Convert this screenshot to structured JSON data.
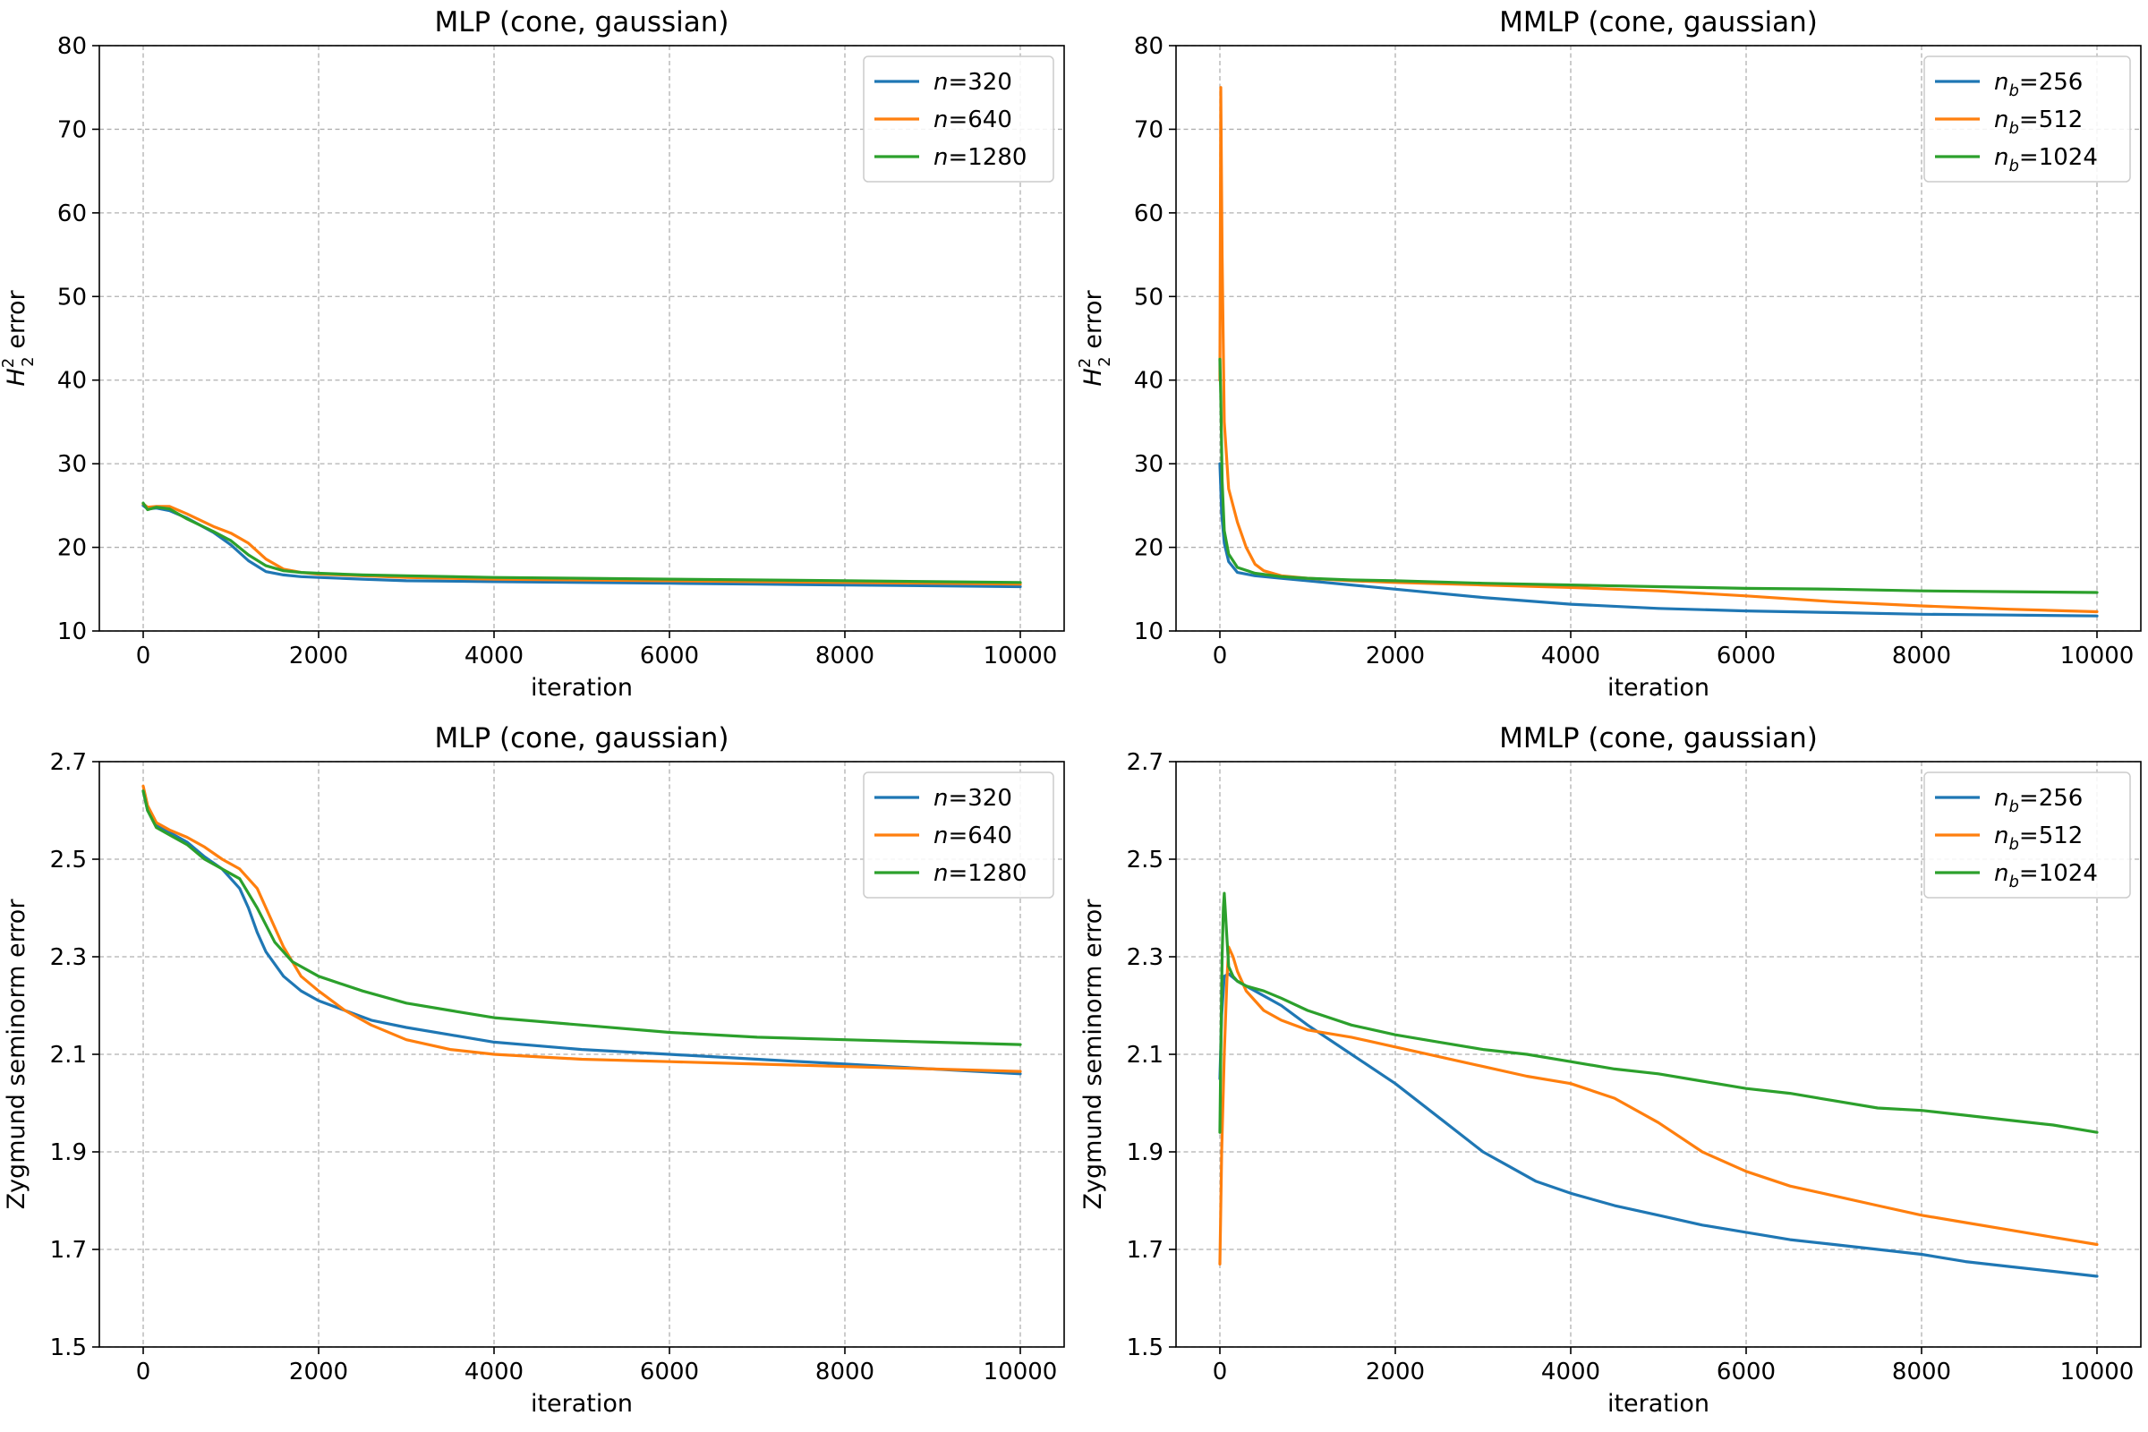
{
  "colors": {
    "blue": "#1f77b4",
    "orange": "#ff7f0e",
    "green": "#2ca02c"
  },
  "chart_data": [
    {
      "type": "line",
      "title": "MLP (cone, gaussian)",
      "xlabel": "iteration",
      "ylabel": {
        "base": "H",
        "sup": "2",
        "sub": "2",
        "rest": " error"
      },
      "xlim": [
        -500,
        10500
      ],
      "ylim": [
        10,
        80
      ],
      "xticks": [
        0,
        2000,
        4000,
        6000,
        8000,
        10000
      ],
      "yticks": [
        10,
        20,
        30,
        40,
        50,
        60,
        70,
        80
      ],
      "ytick_labels": [
        "10",
        "20",
        "30",
        "40",
        "50",
        "60",
        "70",
        "80"
      ],
      "grid": true,
      "legend_position": "top-right",
      "legend_symbol": "n",
      "series": [
        {
          "name": "n=320",
          "label": "=320",
          "sub": "",
          "color": "#1f77b4",
          "x": [
            0,
            50,
            150,
            300,
            500,
            800,
            1000,
            1200,
            1400,
            1600,
            1800,
            2000,
            2500,
            3000,
            4000,
            5000,
            6000,
            7000,
            8000,
            9000,
            10000
          ],
          "y": [
            25.0,
            24.6,
            24.7,
            24.4,
            23.5,
            21.8,
            20.3,
            18.4,
            17.1,
            16.7,
            16.5,
            16.4,
            16.2,
            16.0,
            15.9,
            15.8,
            15.7,
            15.6,
            15.5,
            15.4,
            15.3
          ]
        },
        {
          "name": "n=640",
          "label": "=640",
          "sub": "",
          "color": "#ff7f0e",
          "x": [
            0,
            50,
            150,
            300,
            500,
            800,
            1000,
            1200,
            1400,
            1600,
            1800,
            2000,
            2500,
            3000,
            4000,
            5000,
            6000,
            7000,
            8000,
            9000,
            10000
          ],
          "y": [
            25.2,
            24.8,
            24.9,
            24.9,
            24.0,
            22.5,
            21.7,
            20.5,
            18.6,
            17.4,
            17.0,
            16.8,
            16.6,
            16.4,
            16.2,
            16.1,
            16.0,
            15.9,
            15.8,
            15.7,
            15.6
          ]
        },
        {
          "name": "n=1280",
          "label": "=1280",
          "sub": "",
          "color": "#2ca02c",
          "x": [
            0,
            50,
            150,
            300,
            500,
            800,
            1000,
            1200,
            1400,
            1600,
            1800,
            2000,
            2500,
            3000,
            4000,
            5000,
            6000,
            7000,
            8000,
            9000,
            10000
          ],
          "y": [
            25.3,
            24.5,
            24.8,
            24.6,
            23.4,
            21.9,
            20.8,
            19.1,
            17.8,
            17.2,
            17.0,
            16.9,
            16.7,
            16.6,
            16.4,
            16.3,
            16.2,
            16.1,
            16.0,
            15.9,
            15.8
          ]
        }
      ]
    },
    {
      "type": "line",
      "title": "MMLP (cone, gaussian)",
      "xlabel": "iteration",
      "ylabel": {
        "base": "H",
        "sup": "2",
        "sub": "2",
        "rest": " error"
      },
      "xlim": [
        -500,
        10500
      ],
      "ylim": [
        10,
        80
      ],
      "xticks": [
        0,
        2000,
        4000,
        6000,
        8000,
        10000
      ],
      "yticks": [
        10,
        20,
        30,
        40,
        50,
        60,
        70,
        80
      ],
      "ytick_labels": [
        "10",
        "20",
        "30",
        "40",
        "50",
        "60",
        "70",
        "80"
      ],
      "grid": true,
      "legend_position": "top-right",
      "legend_symbol": "n",
      "series": [
        {
          "name": "nb=256",
          "label": "=256",
          "sub": "b",
          "color": "#1f77b4",
          "x": [
            0,
            20,
            50,
            100,
            200,
            400,
            700,
            1000,
            1500,
            2000,
            3000,
            4000,
            5000,
            6000,
            7000,
            8000,
            9000,
            10000
          ],
          "y": [
            30.0,
            24.0,
            20.5,
            18.3,
            17.0,
            16.6,
            16.3,
            16.0,
            15.5,
            15.0,
            14.0,
            13.2,
            12.7,
            12.4,
            12.2,
            12.0,
            11.9,
            11.8
          ]
        },
        {
          "name": "nb=512",
          "label": "=512",
          "sub": "b",
          "color": "#ff7f0e",
          "x": [
            0,
            10,
            25,
            50,
            100,
            150,
            200,
            300,
            400,
            500,
            700,
            1000,
            1500,
            2000,
            3000,
            4000,
            5000,
            6000,
            7000,
            8000,
            9000,
            10000
          ],
          "y": [
            40.0,
            75.0,
            55.0,
            35.0,
            27.0,
            25.0,
            23.0,
            20.0,
            18.0,
            17.2,
            16.6,
            16.3,
            16.0,
            15.8,
            15.5,
            15.2,
            14.8,
            14.2,
            13.5,
            13.0,
            12.6,
            12.3
          ]
        },
        {
          "name": "nb=1024",
          "label": "=1024",
          "sub": "b",
          "color": "#2ca02c",
          "x": [
            0,
            10,
            25,
            50,
            100,
            200,
            400,
            700,
            1000,
            1500,
            2000,
            3000,
            4000,
            5000,
            6000,
            7000,
            8000,
            9000,
            10000
          ],
          "y": [
            42.5,
            38.0,
            28.0,
            22.0,
            19.2,
            17.6,
            16.9,
            16.5,
            16.3,
            16.1,
            16.0,
            15.7,
            15.5,
            15.3,
            15.1,
            15.0,
            14.8,
            14.7,
            14.6
          ]
        }
      ]
    },
    {
      "type": "line",
      "title": "MLP (cone, gaussian)",
      "xlabel": "iteration",
      "ylabel": {
        "base": "Zygmund seminorm error",
        "sup": "",
        "sub": "",
        "rest": ""
      },
      "xlim": [
        -500,
        10500
      ],
      "ylim": [
        1.5,
        2.7
      ],
      "xticks": [
        0,
        2000,
        4000,
        6000,
        8000,
        10000
      ],
      "yticks": [
        1.5,
        1.7,
        1.9,
        2.1,
        2.3,
        2.5,
        2.7
      ],
      "ytick_labels": [
        "1.5",
        "1.7",
        "1.9",
        "2.1",
        "2.3",
        "2.5",
        "2.7"
      ],
      "grid": true,
      "legend_position": "top-right",
      "legend_symbol": "n",
      "series": [
        {
          "name": "n=320",
          "label": "=320",
          "sub": "",
          "color": "#1f77b4",
          "x": [
            0,
            50,
            150,
            300,
            500,
            700,
            900,
            1100,
            1200,
            1300,
            1400,
            1600,
            1800,
            2000,
            2300,
            2600,
            3000,
            3500,
            4000,
            5000,
            6000,
            7000,
            8000,
            9000,
            10000
          ],
          "y": [
            2.64,
            2.6,
            2.57,
            2.555,
            2.535,
            2.505,
            2.48,
            2.44,
            2.4,
            2.35,
            2.31,
            2.26,
            2.23,
            2.21,
            2.19,
            2.17,
            2.155,
            2.14,
            2.125,
            2.11,
            2.1,
            2.09,
            2.08,
            2.07,
            2.06
          ]
        },
        {
          "name": "n=640",
          "label": "=640",
          "sub": "",
          "color": "#ff7f0e",
          "x": [
            0,
            50,
            150,
            300,
            500,
            700,
            900,
            1100,
            1300,
            1400,
            1600,
            1800,
            2000,
            2300,
            2600,
            3000,
            3500,
            4000,
            5000,
            6000,
            7000,
            8000,
            9000,
            10000
          ],
          "y": [
            2.65,
            2.61,
            2.575,
            2.56,
            2.545,
            2.525,
            2.5,
            2.48,
            2.44,
            2.4,
            2.32,
            2.26,
            2.23,
            2.19,
            2.16,
            2.13,
            2.11,
            2.1,
            2.09,
            2.085,
            2.08,
            2.075,
            2.07,
            2.065
          ]
        },
        {
          "name": "n=1280",
          "label": "=1280",
          "sub": "",
          "color": "#2ca02c",
          "x": [
            0,
            50,
            150,
            300,
            500,
            700,
            900,
            1100,
            1300,
            1500,
            1700,
            2000,
            2500,
            3000,
            3500,
            4000,
            5000,
            6000,
            7000,
            8000,
            9000,
            10000
          ],
          "y": [
            2.64,
            2.6,
            2.565,
            2.55,
            2.53,
            2.5,
            2.48,
            2.46,
            2.4,
            2.33,
            2.29,
            2.26,
            2.23,
            2.205,
            2.19,
            2.175,
            2.16,
            2.145,
            2.135,
            2.13,
            2.125,
            2.12
          ]
        }
      ]
    },
    {
      "type": "line",
      "title": "MMLP (cone, gaussian)",
      "xlabel": "iteration",
      "ylabel": {
        "base": "Zygmund seminorm error",
        "sup": "",
        "sub": "",
        "rest": ""
      },
      "xlim": [
        -500,
        10500
      ],
      "ylim": [
        1.5,
        2.7
      ],
      "xticks": [
        0,
        2000,
        4000,
        6000,
        8000,
        10000
      ],
      "yticks": [
        1.5,
        1.7,
        1.9,
        2.1,
        2.3,
        2.5,
        2.7
      ],
      "ytick_labels": [
        "1.5",
        "1.7",
        "1.9",
        "2.1",
        "2.3",
        "2.5",
        "2.7"
      ],
      "grid": true,
      "legend_position": "top-right",
      "legend_symbol": "n",
      "series": [
        {
          "name": "nb=256",
          "label": "=256",
          "sub": "b",
          "color": "#1f77b4",
          "x": [
            0,
            20,
            50,
            100,
            200,
            400,
            700,
            1000,
            1500,
            2000,
            2500,
            3000,
            3300,
            3600,
            4000,
            4500,
            5000,
            5500,
            6000,
            6500,
            7000,
            7500,
            8000,
            8500,
            9000,
            9500,
            10000
          ],
          "y": [
            2.05,
            2.18,
            2.26,
            2.265,
            2.25,
            2.23,
            2.2,
            2.16,
            2.1,
            2.04,
            1.97,
            1.9,
            1.87,
            1.84,
            1.815,
            1.79,
            1.77,
            1.75,
            1.735,
            1.72,
            1.71,
            1.7,
            1.69,
            1.675,
            1.665,
            1.655,
            1.645
          ]
        },
        {
          "name": "nb=512",
          "label": "=512",
          "sub": "b",
          "color": "#ff7f0e",
          "x": [
            0,
            20,
            50,
            80,
            100,
            150,
            200,
            300,
            500,
            700,
            1000,
            1500,
            2000,
            2500,
            3000,
            3500,
            4000,
            4500,
            5000,
            5500,
            6000,
            6500,
            7000,
            7500,
            8000,
            8500,
            9000,
            9500,
            10000
          ],
          "y": [
            1.67,
            1.9,
            2.1,
            2.25,
            2.32,
            2.3,
            2.27,
            2.23,
            2.19,
            2.17,
            2.15,
            2.135,
            2.115,
            2.095,
            2.075,
            2.055,
            2.04,
            2.01,
            1.96,
            1.9,
            1.86,
            1.83,
            1.81,
            1.79,
            1.77,
            1.755,
            1.74,
            1.725,
            1.71
          ]
        },
        {
          "name": "nb=1024",
          "label": "=1024",
          "sub": "b",
          "color": "#2ca02c",
          "x": [
            0,
            10,
            25,
            40,
            50,
            60,
            80,
            100,
            150,
            200,
            300,
            500,
            700,
            1000,
            1500,
            2000,
            2500,
            3000,
            3500,
            4000,
            4500,
            5000,
            5500,
            6000,
            6500,
            7000,
            7500,
            8000,
            8500,
            9000,
            9500,
            10000
          ],
          "y": [
            1.94,
            2.1,
            2.3,
            2.4,
            2.43,
            2.4,
            2.34,
            2.28,
            2.26,
            2.25,
            2.24,
            2.23,
            2.215,
            2.19,
            2.16,
            2.14,
            2.125,
            2.11,
            2.1,
            2.085,
            2.07,
            2.06,
            2.045,
            2.03,
            2.02,
            2.005,
            1.99,
            1.985,
            1.975,
            1.965,
            1.955,
            1.94
          ]
        }
      ]
    }
  ]
}
